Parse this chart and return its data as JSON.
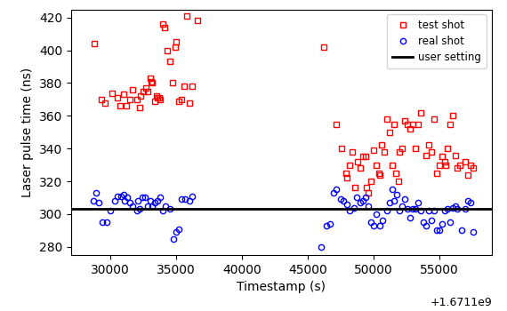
{
  "user_setting": 303,
  "xlim": [
    27000,
    59000
  ],
  "ylim": [
    275,
    425
  ],
  "xticks": [
    30000,
    35000,
    40000,
    45000,
    50000,
    55000
  ],
  "yticks": [
    280,
    300,
    320,
    340,
    360,
    380,
    400,
    420
  ],
  "offset_str": "+1.6711e9",
  "xlabel": "Timestamp (s)",
  "ylabel": "Laser pulse time (ns)",
  "legend_labels": [
    "test shot",
    "real shot",
    "user setting"
  ],
  "red_x": [
    28800,
    29300,
    29600,
    30100,
    30500,
    30700,
    31000,
    31200,
    31500,
    31700,
    32000,
    32200,
    32300,
    32500,
    32700,
    32800,
    33000,
    33100,
    33200,
    33400,
    33500,
    33600,
    33700,
    33800,
    34000,
    34100,
    34300,
    34500,
    34700,
    34900,
    35000,
    35200,
    35400,
    35600,
    35800,
    36000,
    36200,
    36600,
    46200,
    47200,
    47600,
    47900,
    48000,
    48200,
    48400,
    48600,
    48800,
    49000,
    49200,
    49400,
    49500,
    49600,
    49800,
    50000,
    50200,
    50400,
    50500,
    50600,
    50800,
    51000,
    51200,
    51400,
    51600,
    51700,
    51900,
    52000,
    52200,
    52400,
    52600,
    52800,
    53000,
    53200,
    53400,
    53600,
    54000,
    54200,
    54400,
    54600,
    54800,
    55000,
    55200,
    55400,
    55500,
    55600,
    55800,
    56000,
    56200,
    56400,
    56600,
    57000,
    57200,
    57400,
    57600
  ],
  "red_y": [
    404,
    370,
    368,
    374,
    371,
    366,
    373,
    366,
    370,
    376,
    370,
    365,
    372,
    375,
    377,
    375,
    383,
    381,
    380,
    369,
    372,
    371,
    371,
    370,
    416,
    414,
    400,
    393,
    380,
    402,
    405,
    369,
    370,
    378,
    421,
    368,
    378,
    418,
    402,
    355,
    340,
    325,
    322,
    330,
    338,
    316,
    332,
    328,
    335,
    335,
    316,
    313,
    320,
    339,
    330,
    325,
    324,
    342,
    338,
    358,
    350,
    330,
    355,
    325,
    320,
    338,
    340,
    357,
    355,
    352,
    355,
    340,
    355,
    362,
    336,
    342,
    338,
    358,
    325,
    330,
    335,
    332,
    330,
    340,
    355,
    360,
    336,
    328,
    330,
    332,
    324,
    330,
    328
  ],
  "blue_x": [
    28700,
    28900,
    29100,
    29400,
    29700,
    30000,
    30300,
    30500,
    30800,
    31000,
    31100,
    31300,
    31500,
    31700,
    32000,
    32100,
    32200,
    32400,
    32600,
    32800,
    33000,
    33200,
    33400,
    33600,
    33800,
    34000,
    34200,
    34500,
    34800,
    35000,
    35200,
    35400,
    35700,
    36000,
    36200,
    46000,
    46400,
    46700,
    47000,
    47200,
    47500,
    47700,
    48000,
    48200,
    48500,
    48700,
    49000,
    49200,
    49400,
    49600,
    49800,
    50000,
    50200,
    50500,
    50700,
    51000,
    51200,
    51400,
    51600,
    51800,
    52000,
    52200,
    52400,
    52600,
    52800,
    53000,
    53200,
    53400,
    53600,
    53800,
    54000,
    54200,
    54400,
    54600,
    54800,
    55000,
    55200,
    55400,
    55600,
    55800,
    56000,
    56200,
    56400,
    56700,
    57000,
    57200,
    57400,
    57600
  ],
  "blue_y": [
    308,
    313,
    307,
    295,
    295,
    302,
    308,
    311,
    311,
    312,
    308,
    310,
    307,
    305,
    302,
    308,
    303,
    310,
    310,
    305,
    308,
    305,
    307,
    308,
    310,
    302,
    305,
    303,
    285,
    289,
    291,
    309,
    309,
    308,
    311,
    280,
    293,
    294,
    313,
    315,
    309,
    308,
    306,
    302,
    304,
    310,
    307,
    308,
    310,
    305,
    295,
    293,
    300,
    293,
    296,
    302,
    307,
    315,
    308,
    312,
    302,
    305,
    309,
    303,
    298,
    303,
    303,
    307,
    302,
    295,
    293,
    302,
    296,
    302,
    290,
    290,
    294,
    302,
    303,
    295,
    304,
    305,
    303,
    290,
    303,
    308,
    307,
    289
  ]
}
